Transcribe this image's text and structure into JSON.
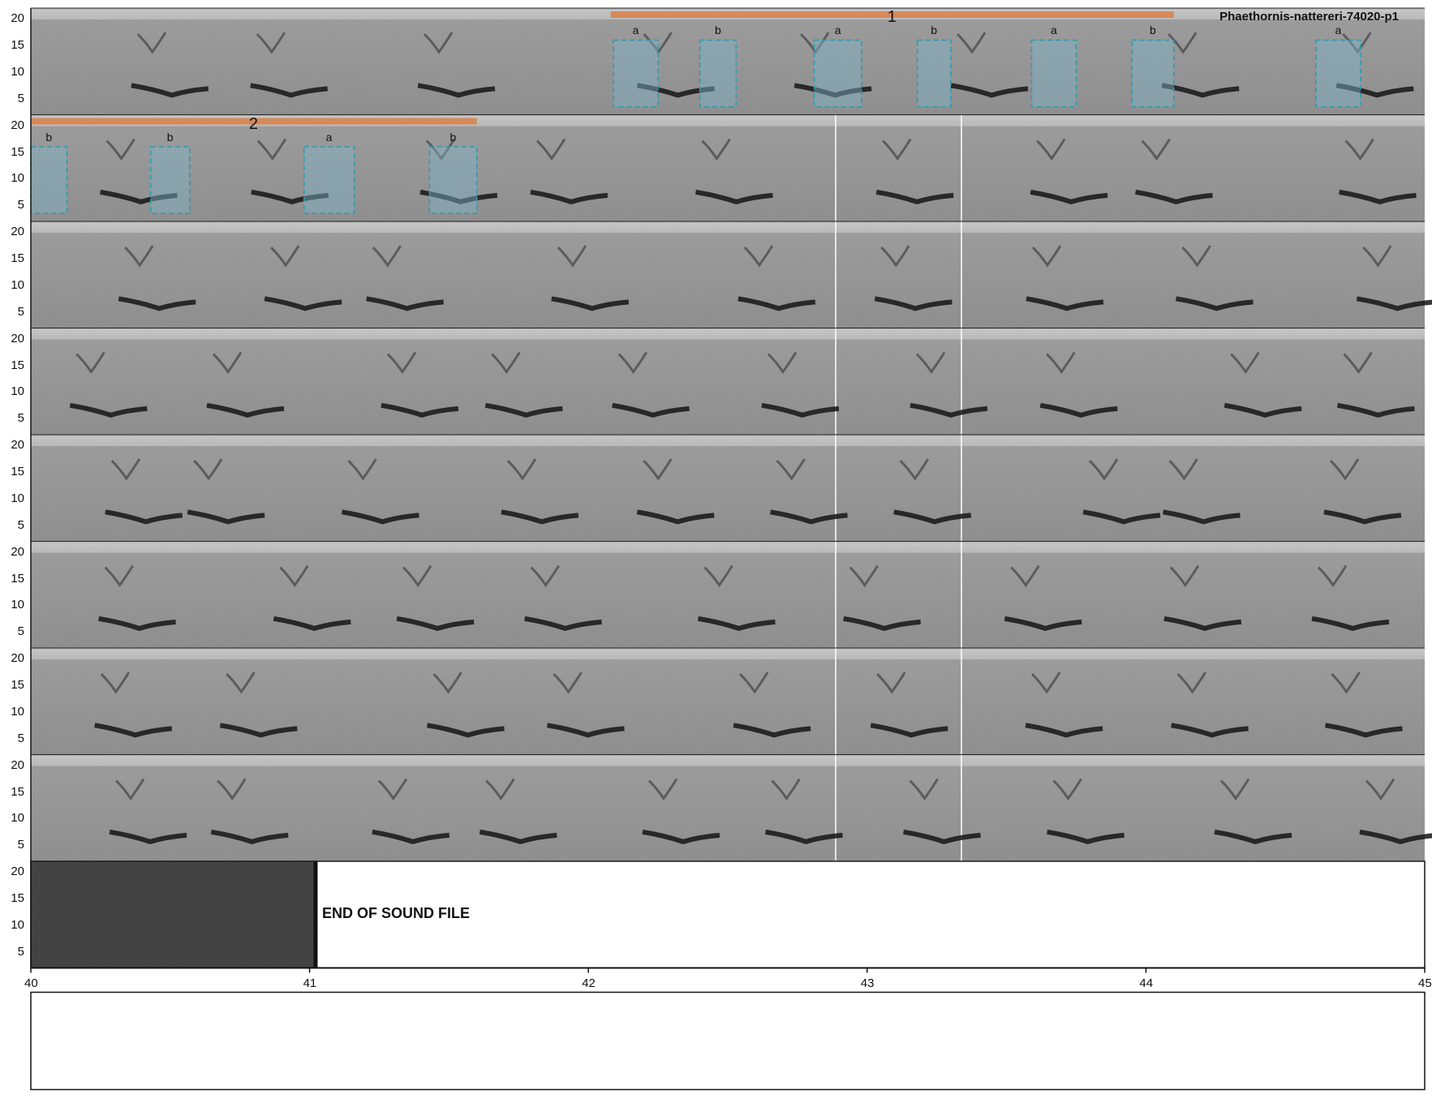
{
  "chart_data": {
    "type": "spectrogram",
    "title": "Phaethornis-nattereri-74020-p1",
    "end_label": "END OF SOUND FILE",
    "ylabel": "",
    "xlabel": "",
    "yticks": [
      5,
      10,
      15,
      20
    ],
    "ylim": [
      2,
      22
    ],
    "xticks": [
      40,
      41,
      42,
      43,
      44,
      45
    ],
    "xlim": [
      40,
      45
    ],
    "row_duration_s": 5,
    "rows": 9,
    "colors": {
      "box_fill": "#7fb3c8",
      "box_stroke": "#2a9ab0",
      "group_bar": "#d58a5a"
    },
    "groups": [
      {
        "label": "1",
        "row": 0,
        "start": 2.08,
        "end": 4.1
      },
      {
        "label": "2",
        "row": 1,
        "start": 0.0,
        "end": 1.6
      }
    ],
    "annotations": [
      {
        "row": 0,
        "label": "a",
        "start": 2.09,
        "end": 2.25
      },
      {
        "row": 0,
        "label": "b",
        "start": 2.4,
        "end": 2.53
      },
      {
        "row": 0,
        "label": "a",
        "start": 2.81,
        "end": 2.98
      },
      {
        "row": 0,
        "label": "b",
        "start": 3.18,
        "end": 3.3
      },
      {
        "row": 0,
        "label": "a",
        "start": 3.59,
        "end": 3.75
      },
      {
        "row": 0,
        "label": "b",
        "start": 3.95,
        "end": 4.1
      },
      {
        "row": 0,
        "label": "a",
        "start": 4.61,
        "end": 4.77
      },
      {
        "row": 1,
        "label": "b",
        "start": 0.0,
        "end": 0.13
      },
      {
        "row": 1,
        "label": "b",
        "start": 0.43,
        "end": 0.57
      },
      {
        "row": 1,
        "label": "a",
        "start": 0.98,
        "end": 1.16
      },
      {
        "row": 1,
        "label": "b",
        "start": 1.43,
        "end": 1.6
      }
    ]
  }
}
